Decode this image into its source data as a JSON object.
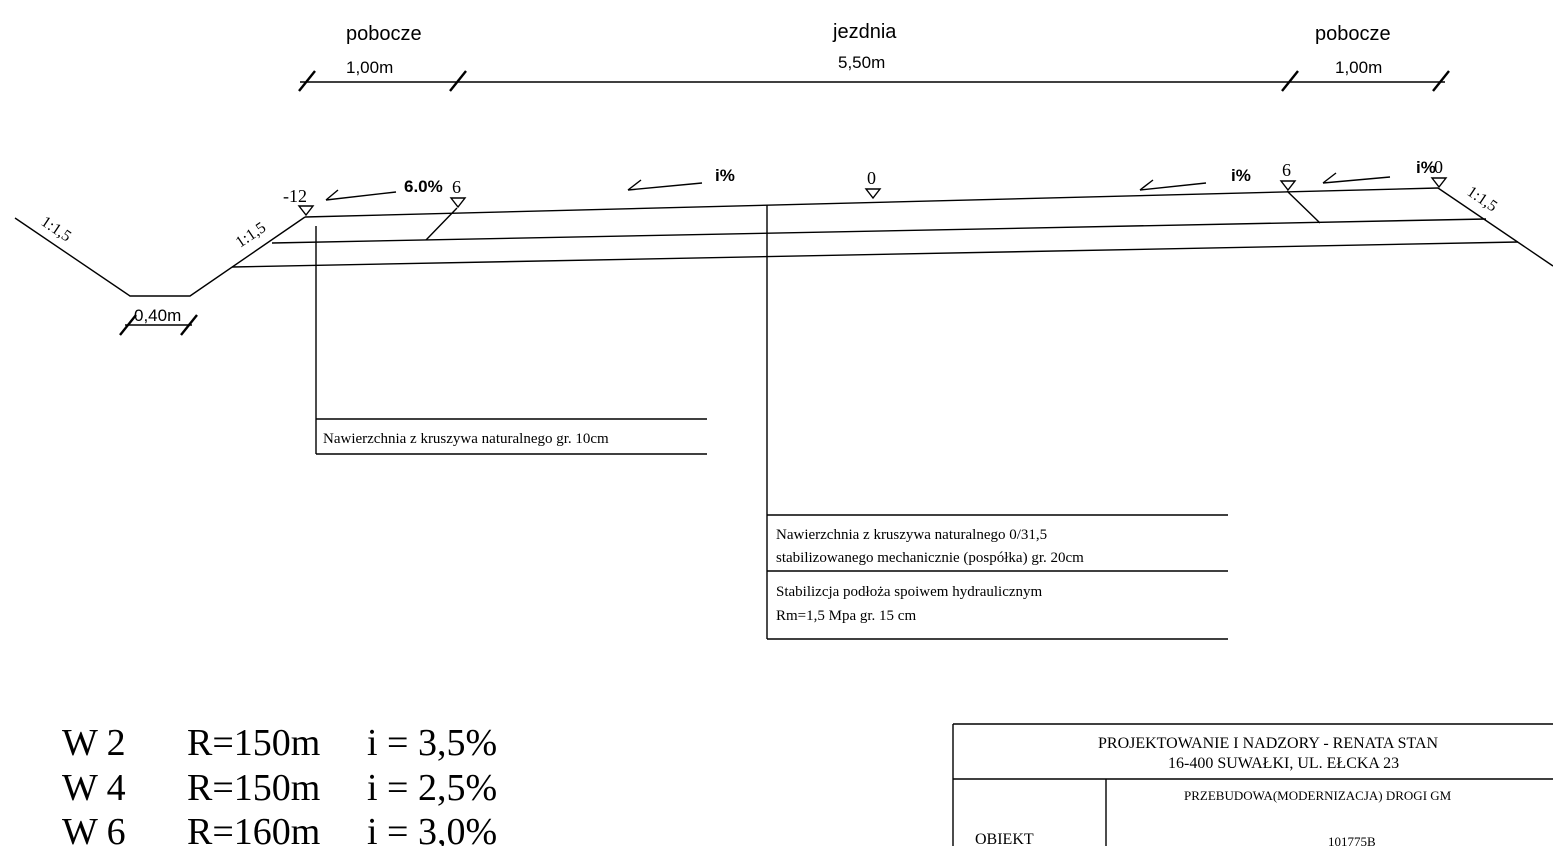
{
  "dimensions": {
    "left_label": "pobocze",
    "left_width": "1,00m",
    "center_label": "jezdnia",
    "center_width": "5,50m",
    "right_label": "pobocze",
    "right_width": "1,00m"
  },
  "ditch_width": "0,40m",
  "slopes": {
    "outer_left": "1:1,5",
    "inner_left": "1:1,5",
    "right": "1:1,5"
  },
  "elevations": {
    "left_edge": "-12",
    "left_shoulder": "6",
    "axis": "0",
    "right_shoulder": "6",
    "right_edge": "0"
  },
  "grades": {
    "left_shoulder": "6.0%",
    "left_lane": "i%",
    "right_lane": "i%",
    "right_shoulder": "i%"
  },
  "layer_notes": {
    "shoulder_surface": "Nawierzchnia z kruszywa naturalnego gr. 10cm",
    "road_surface_line1": "Nawierzchnia z kruszywa naturalnego 0/31,5",
    "road_surface_line2": "stabilizowanego mechanicznie (pospółka) gr. 20cm",
    "subgrade_line1": "Stabilizcja podłoża spoiwem hydraulicznym",
    "subgrade_line2": "Rm=1,5 Mpa gr. 15 cm"
  },
  "curves": [
    {
      "id": "W 2",
      "radius": "R=150m",
      "grade": "i = 3,5%"
    },
    {
      "id": "W 4",
      "radius": "R=150m",
      "grade": "i = 2,5%"
    },
    {
      "id": "W 6",
      "radius": "R=160m",
      "grade": "i = 3,0%"
    }
  ],
  "title_block": {
    "company": "PROJEKTOWANIE I NADZORY - RENATA STAN",
    "address": "16-400 SUWAŁKI, UL. EŁCKA 23",
    "object_label": "OBIEKT",
    "object_value": "PRZEBUDOWA(MODERNIZACJA) DROGI GM",
    "object_number": "101775B"
  }
}
